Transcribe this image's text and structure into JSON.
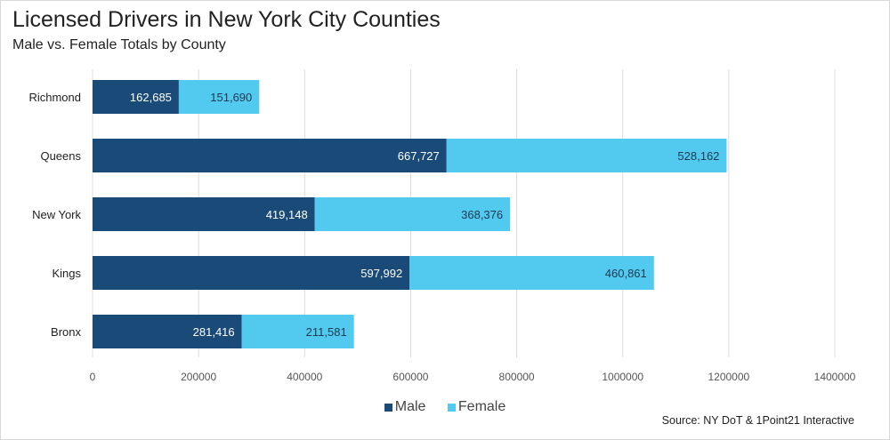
{
  "title": "Licensed Drivers in New York City Counties",
  "subtitle": "Male vs. Female Totals by County",
  "source": "Source: NY DoT & 1Point21 Interactive",
  "chart_data": {
    "type": "bar",
    "orientation": "horizontal",
    "stacked": true,
    "categories": [
      "Richmond",
      "Queens",
      "New York",
      "Kings",
      "Bronx"
    ],
    "series": [
      {
        "name": "Male",
        "color": "#1a4a78",
        "values": [
          162685,
          667727,
          419148,
          597992,
          281416
        ],
        "labels": [
          "162,685",
          "667,727",
          "419,148",
          "597,992",
          "281,416"
        ]
      },
      {
        "name": "Female",
        "color": "#52c9ee",
        "values": [
          151690,
          528162,
          368376,
          460861,
          211581
        ],
        "labels": [
          "151,690",
          "528,162",
          "368,376",
          "460,861",
          "211,581"
        ]
      }
    ],
    "xlim": [
      0,
      1400000
    ],
    "xticks": [
      "0",
      "200000",
      "400000",
      "600000",
      "800000",
      "1000000",
      "1200000",
      "1400000"
    ],
    "grid": "vertical",
    "legend": "bottom"
  }
}
